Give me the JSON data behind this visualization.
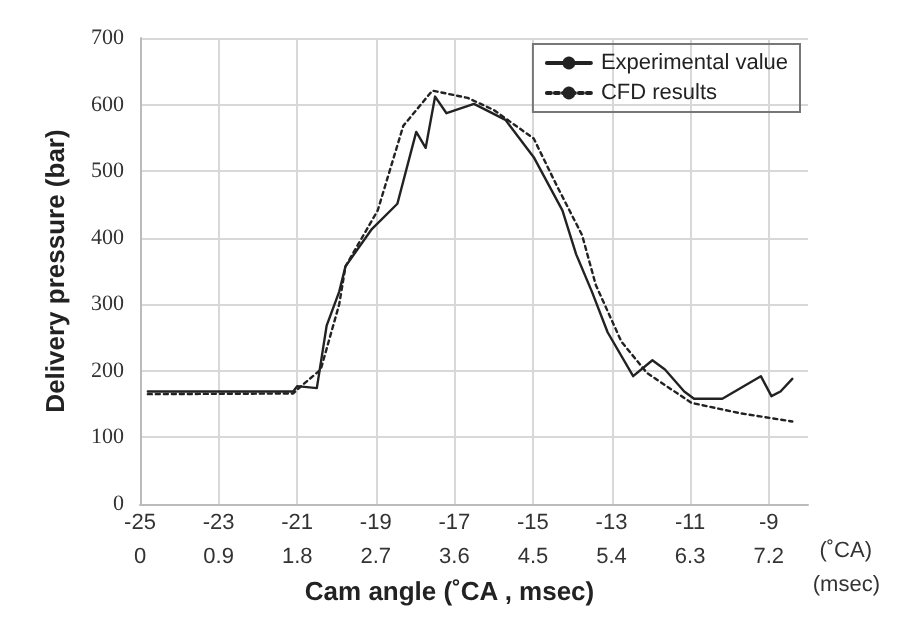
{
  "chart_data": {
    "type": "line",
    "xlabel": "Cam angle (˚CA , msec)",
    "ylabel": "Delivery pressure (bar)",
    "xlim": [
      -25,
      -8
    ],
    "xticks": [
      -25,
      -23,
      -21,
      -19,
      -17,
      -15,
      -13,
      -11,
      -9
    ],
    "x2lim": [
      0,
      7.65
    ],
    "x2ticks": [
      0,
      0.9,
      1.8,
      2.7,
      3.6,
      4.5,
      5.4,
      6.3,
      7.2
    ],
    "ylim": [
      0,
      700
    ],
    "yticks": [
      0,
      100,
      200,
      300,
      400,
      500,
      600,
      700
    ],
    "annotations": [
      "(˚CA)",
      "(msec)"
    ],
    "grid": true,
    "legend": "top right",
    "marker": "none",
    "series": [
      {
        "name": "Experimental value",
        "color": "#222222",
        "line_style": "solid",
        "x": [
          -24.8,
          -21.1,
          -21,
          -20.5,
          -20.25,
          -19.93,
          -19.77,
          -19.1,
          -18.45,
          -17.97,
          -17.73,
          -17.49,
          -17.2,
          -16.5,
          -15.7,
          -14.98,
          -14.25,
          -13.9,
          -13.5,
          -13.1,
          -12.45,
          -11.96,
          -11.64,
          -11.15,
          -10.9,
          -10.18,
          -9.2,
          -8.93,
          -8.7,
          -8.4
        ],
        "values": [
          169,
          169,
          177,
          174,
          268,
          319,
          357,
          413,
          451,
          559,
          535,
          612,
          587,
          601,
          577,
          521,
          441,
          375,
          319,
          258,
          192,
          216,
          202,
          169,
          158,
          158,
          192,
          162,
          169,
          188
        ]
      },
      {
        "name": "CFD results",
        "color": "#222222",
        "line_style": "dotted",
        "x": [
          -24.8,
          -21.1,
          -20.9,
          -20.4,
          -19.93,
          -19.77,
          -18.95,
          -18.3,
          -17.56,
          -16.66,
          -16.0,
          -14.98,
          -14.4,
          -13.75,
          -13.4,
          -12.75,
          -12.1,
          -10.97,
          -9.7,
          -8.4
        ],
        "values": [
          165,
          166,
          177,
          202,
          300,
          357,
          441,
          568,
          621,
          610,
          592,
          549,
          479,
          404,
          329,
          244,
          197,
          152,
          136,
          124
        ]
      }
    ]
  }
}
